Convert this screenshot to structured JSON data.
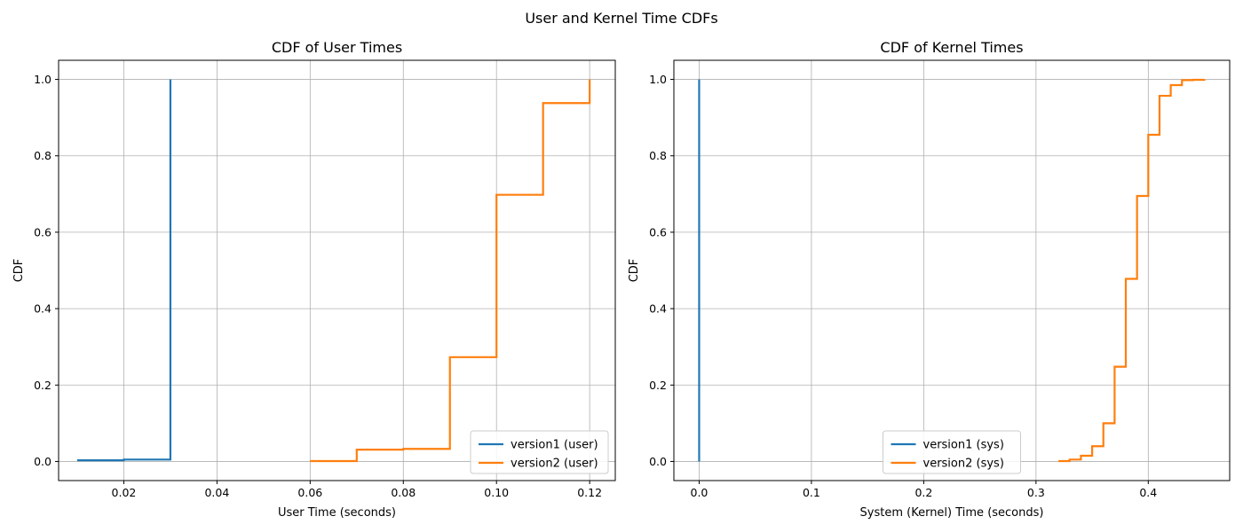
{
  "figure": {
    "title": "User and Kernel Time CDFs"
  },
  "colors": {
    "series1": "#1f77b4",
    "series2": "#ff7f0e",
    "grid": "#b0b0b0",
    "legend_border": "#cccccc"
  },
  "chart_data": [
    {
      "type": "line",
      "step": "post",
      "title": "CDF of User Times",
      "xlabel": "User Time (seconds)",
      "ylabel": "CDF",
      "xlim": [
        0.006,
        0.1255
      ],
      "ylim": [
        -0.05,
        1.05
      ],
      "xticks": [
        0.02,
        0.04,
        0.06,
        0.08,
        0.1,
        0.12
      ],
      "xtick_labels": [
        "0.02",
        "0.04",
        "0.06",
        "0.08",
        "0.10",
        "0.12"
      ],
      "yticks": [
        0.0,
        0.2,
        0.4,
        0.6,
        0.8,
        1.0
      ],
      "ytick_labels": [
        "0.0",
        "0.2",
        "0.4",
        "0.6",
        "0.8",
        "1.0"
      ],
      "grid": true,
      "legend_position": "lower-right",
      "series": [
        {
          "name": "version1 (user)",
          "color": "#1f77b4",
          "x": [
            0.01,
            0.02,
            0.03,
            0.03
          ],
          "y": [
            0.003,
            0.005,
            0.482,
            1.0
          ]
        },
        {
          "name": "version2 (user)",
          "color": "#ff7f0e",
          "x": [
            0.06,
            0.07,
            0.08,
            0.09,
            0.1,
            0.11,
            0.12,
            0.12
          ],
          "y": [
            0.001,
            0.031,
            0.033,
            0.273,
            0.698,
            0.938,
            0.992,
            1.0
          ]
        }
      ]
    },
    {
      "type": "line",
      "step": "post",
      "title": "CDF of Kernel Times",
      "xlabel": "System (Kernel) Time (seconds)",
      "ylabel": "CDF",
      "xlim": [
        -0.0225,
        0.4725
      ],
      "ylim": [
        -0.05,
        1.05
      ],
      "xticks": [
        0.0,
        0.1,
        0.2,
        0.3,
        0.4
      ],
      "xtick_labels": [
        "0.0",
        "0.1",
        "0.2",
        "0.3",
        "0.4"
      ],
      "yticks": [
        0.0,
        0.2,
        0.4,
        0.6,
        0.8,
        1.0
      ],
      "ytick_labels": [
        "0.0",
        "0.2",
        "0.4",
        "0.6",
        "0.8",
        "1.0"
      ],
      "grid": true,
      "legend_position": "lower-center",
      "series": [
        {
          "name": "version1 (sys)",
          "color": "#1f77b4",
          "x": [
            0.0,
            0.0
          ],
          "y": [
            0.0,
            1.0
          ]
        },
        {
          "name": "version2 (sys)",
          "color": "#ff7f0e",
          "x": [
            0.32,
            0.33,
            0.34,
            0.35,
            0.36,
            0.37,
            0.38,
            0.39,
            0.4,
            0.41,
            0.42,
            0.43,
            0.44,
            0.45
          ],
          "y": [
            0.001,
            0.005,
            0.015,
            0.04,
            0.1,
            0.248,
            0.478,
            0.695,
            0.855,
            0.957,
            0.985,
            0.998,
            0.999,
            1.0
          ]
        }
      ]
    }
  ]
}
